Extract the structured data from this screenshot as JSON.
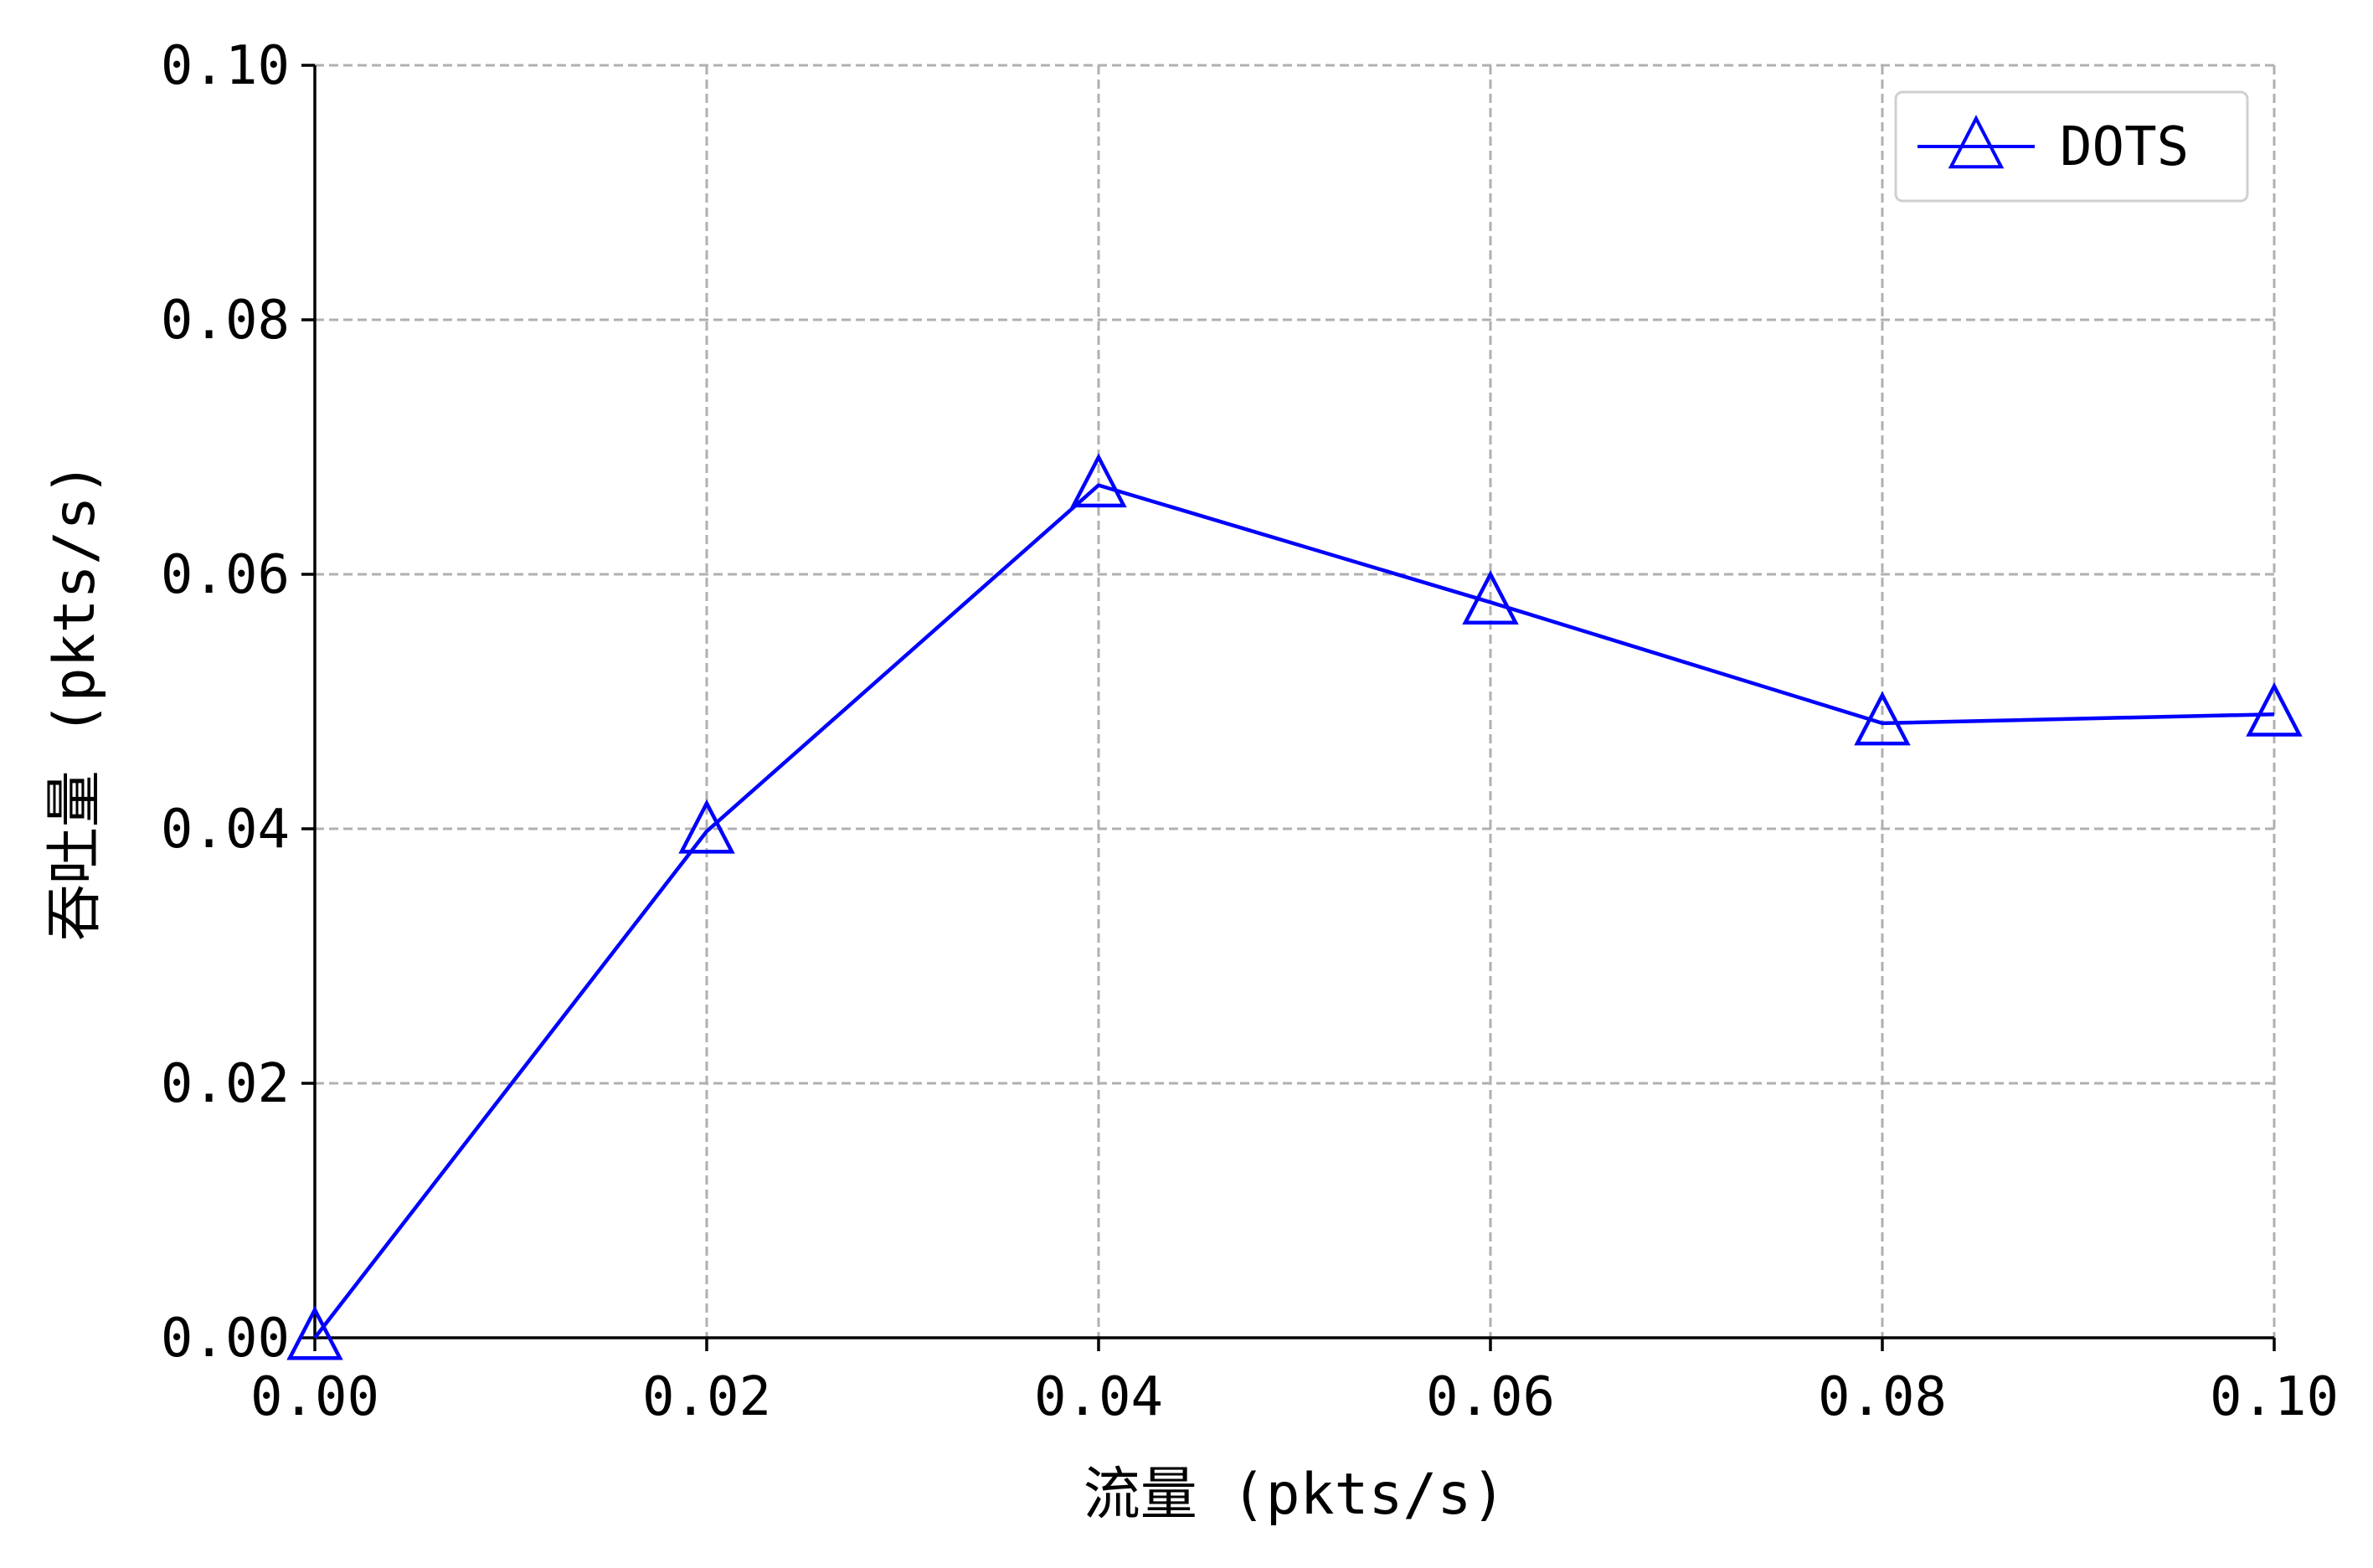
{
  "chart_data": {
    "type": "line",
    "title": "",
    "xlabel": "流量 (pkts/s)",
    "ylabel": "吞吐量 (pkts/s)",
    "xlim": [
      0,
      0.1
    ],
    "ylim": [
      0,
      0.1
    ],
    "xticks": [
      "0.00",
      "0.02",
      "0.04",
      "0.06",
      "0.08",
      "0.10"
    ],
    "yticks": [
      "0.00",
      "0.02",
      "0.04",
      "0.06",
      "0.08",
      "0.10"
    ],
    "grid": true,
    "legend_position": "top-right",
    "series": [
      {
        "name": "DOTS",
        "color": "#0000ff",
        "marker": "triangle-up-hollow",
        "x": [
          0.0,
          0.02,
          0.04,
          0.06,
          0.08,
          0.1
        ],
        "y": [
          0.0,
          0.0398,
          0.067,
          0.0578,
          0.0483,
          0.049
        ]
      }
    ]
  }
}
